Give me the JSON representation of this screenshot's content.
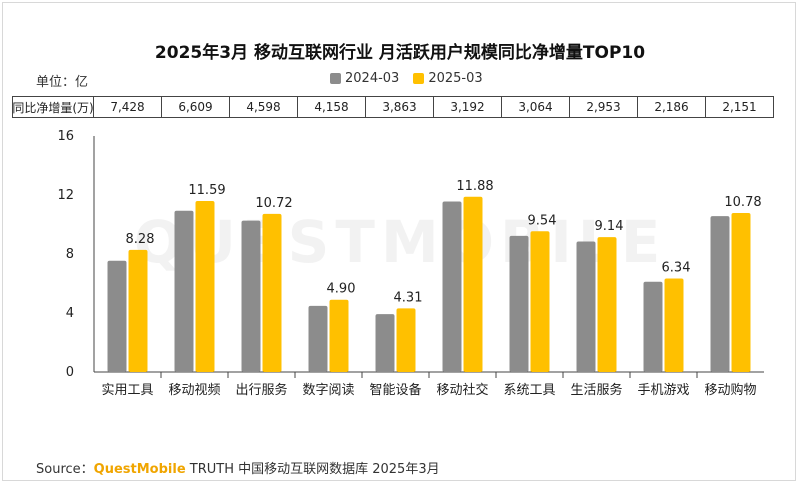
{
  "title": "2025年3月 移动互联网行业 月活跃用户规模同比净增量TOP10",
  "unit_label": "单位：亿",
  "table_header": "同比净增量(万)",
  "net_increase": [
    "7,428",
    "6,609",
    "4,598",
    "4,158",
    "3,863",
    "3,192",
    "3,064",
    "2,953",
    "2,186",
    "2,151"
  ],
  "source": {
    "prefix": "Source：",
    "brand": "QuestMobile",
    "rest": " TRUTH 中国移动互联网数据库 2025年3月"
  },
  "watermark": "QUESTMOBILE",
  "colors": {
    "s2024": "#8c8c8c",
    "s2025": "#ffc000"
  },
  "chart_data": {
    "type": "bar",
    "title": "2025年3月 移动互联网行业 月活跃用户规模同比净增量TOP10",
    "categories": [
      "实用工具",
      "移动视频",
      "出行服务",
      "数字阅读",
      "智能设备",
      "移动社交",
      "系统工具",
      "生活服务",
      "手机游戏",
      "移动购物"
    ],
    "series": [
      {
        "name": "2024-03",
        "values": [
          7.54,
          10.93,
          10.26,
          4.48,
          3.92,
          11.56,
          9.23,
          8.85,
          6.12,
          10.57
        ]
      },
      {
        "name": "2025-03",
        "values": [
          8.28,
          11.59,
          10.72,
          4.9,
          4.31,
          11.88,
          9.54,
          9.14,
          6.34,
          10.78
        ],
        "labels": [
          "8.28",
          "11.59",
          "10.72",
          "4.90",
          "4.31",
          "11.88",
          "9.54",
          "9.14",
          "6.34",
          "10.78"
        ]
      }
    ],
    "yticks": [
      "0",
      "4",
      "8",
      "12",
      "16"
    ],
    "ylim": [
      0,
      16
    ],
    "legend_position": "top-center"
  }
}
